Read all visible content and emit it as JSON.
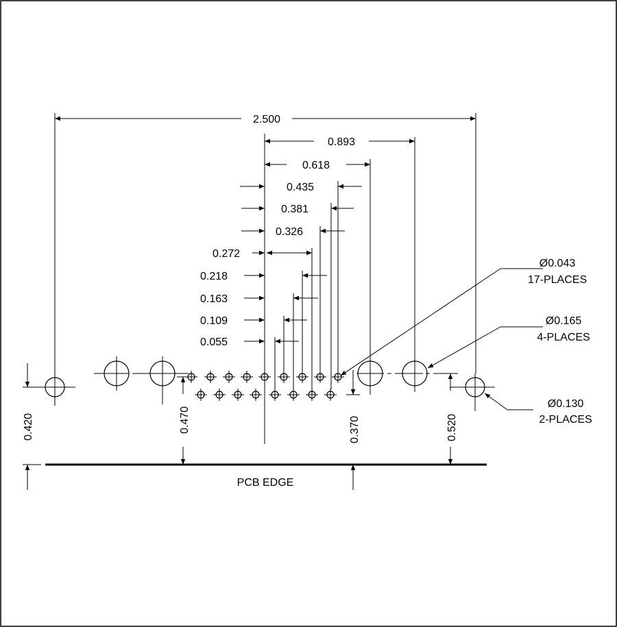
{
  "dimensions": {
    "overall": "2.500",
    "d0893": "0.893",
    "d0618": "0.618",
    "d0435": "0.435",
    "d0381": "0.381",
    "d0326": "0.326",
    "d0272": "0.272",
    "d0218": "0.218",
    "d0163": "0.163",
    "d0109": "0.109",
    "d0055": "0.055",
    "v0420": "0.420",
    "v0470": "0.470",
    "v0370": "0.370",
    "v0520": "0.520"
  },
  "callouts": {
    "small_holes": {
      "diameter": "Ø0.043",
      "count": "17-PLACES"
    },
    "large_holes": {
      "diameter": "Ø0.165",
      "count": "4-PLACES"
    },
    "mount_holes": {
      "diameter": "Ø0.130",
      "count": "2-PLACES"
    }
  },
  "pcb_edge_label": "PCB EDGE"
}
